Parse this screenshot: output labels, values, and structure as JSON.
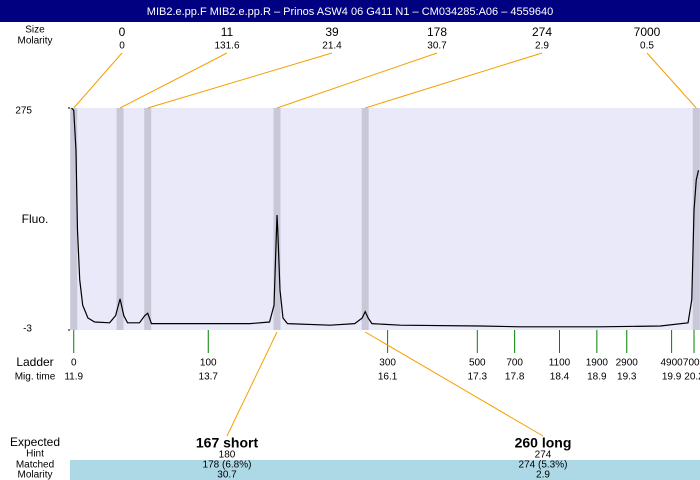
{
  "chart_data": {
    "type": "line",
    "title": "MIB2.e.pp.F  MIB2.e.pp.R – Prinos ASW4 06 G411 N1 – CM034285:A06 – 4559640",
    "peak_table": {
      "size_label": "Size",
      "molarity_label": "Molarity",
      "sizes": [
        0,
        11,
        39,
        178,
        274,
        7000
      ],
      "molarity": [
        0,
        131.6,
        21.4,
        30.7,
        2.9,
        0.5
      ],
      "mig_times": [
        11.9,
        12.52,
        12.89,
        14.62,
        15.8,
        20.23
      ]
    },
    "y_label": "Fluo.",
    "x": [
      11.87,
      11.9,
      11.93,
      11.95,
      11.98,
      12.02,
      12.09,
      12.18,
      12.38,
      12.46,
      12.52,
      12.57,
      12.62,
      12.78,
      12.85,
      12.89,
      12.94,
      13.05,
      13.59,
      14.26,
      14.52,
      14.58,
      14.6,
      14.62,
      14.63,
      14.66,
      14.7,
      14.76,
      15.33,
      15.66,
      15.76,
      15.8,
      15.84,
      15.89,
      16.27,
      17.34,
      17.87,
      18.94,
      19.75,
      20.12,
      20.17,
      20.2,
      20.23,
      20.26
    ],
    "values": [
      275,
      272,
      222,
      122,
      60,
      28,
      12,
      7,
      6,
      15,
      36,
      15,
      6,
      6,
      15,
      18,
      5,
      5,
      5,
      5,
      7,
      28,
      85,
      141,
      122,
      47,
      12,
      5,
      3,
      5,
      12,
      20,
      12,
      5,
      3,
      2,
      1,
      1,
      2,
      6,
      35,
      147,
      185,
      197
    ],
    "xlim": [
      11.85,
      20.28
    ],
    "ylim": [
      -3,
      275
    ],
    "yticks": [
      -3,
      275
    ],
    "ladder": {
      "label": "Ladder",
      "time_label": "Mig. time",
      "sizes": [
        0,
        100,
        300,
        500,
        700,
        1100,
        1900,
        2900,
        4900,
        7000
      ],
      "mig_times": [
        11.9,
        13.7,
        16.1,
        17.3,
        17.8,
        18.4,
        18.9,
        19.3,
        19.9,
        20.2
      ]
    },
    "expected": {
      "label": "Expected",
      "hint_label": "Hint",
      "matched_label": "Matched",
      "molarity_label": "Molarity",
      "items": [
        {
          "name": "167 short",
          "hint": 180,
          "matched": "178 (6.8%)",
          "molarity": 30.7,
          "mig_time": 14.62
        },
        {
          "name": "260 long",
          "hint": 274,
          "matched": "274 (5.3%)",
          "molarity": 2.9,
          "mig_time": 15.8
        }
      ]
    }
  }
}
